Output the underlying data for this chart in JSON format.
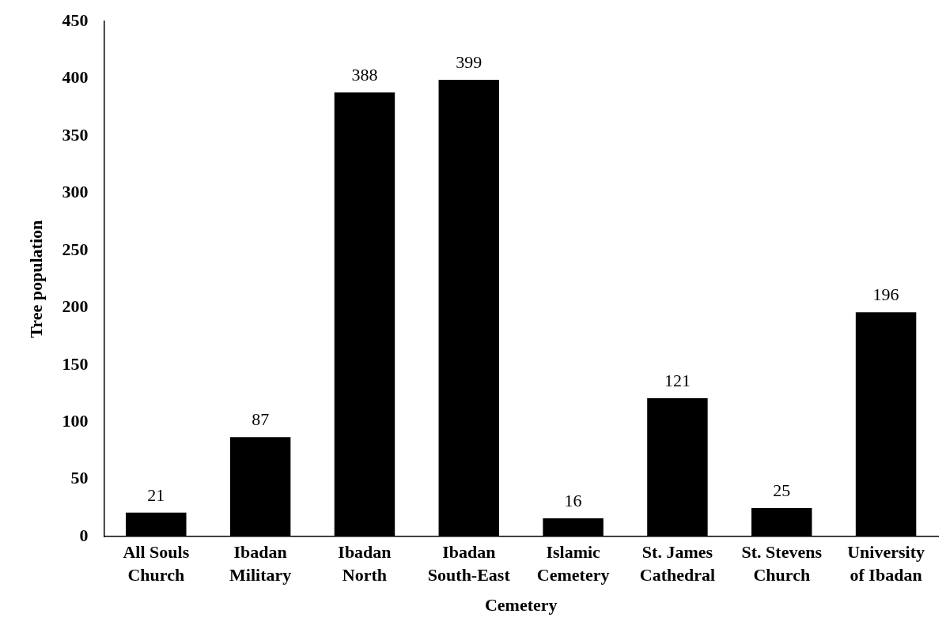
{
  "chart_data": {
    "type": "bar",
    "xlabel": "Cemetery",
    "ylabel": "Tree population",
    "categories": [
      "All Souls\nChurch",
      "Ibadan\nMilitary",
      "Ibadan\nNorth",
      "Ibadan\nSouth-East",
      "Islamic\nCemetery",
      "St. James\nCathedral",
      "St. Stevens\nChurch",
      "University\nof Ibadan"
    ],
    "values": [
      21,
      87,
      388,
      399,
      16,
      121,
      25,
      196
    ],
    "color": "#000000",
    "ylim": [
      0,
      450
    ],
    "yticks": [
      0,
      50,
      100,
      150,
      200,
      250,
      300,
      350,
      400,
      450
    ],
    "grid": false,
    "legend": false,
    "data_labels": true
  }
}
